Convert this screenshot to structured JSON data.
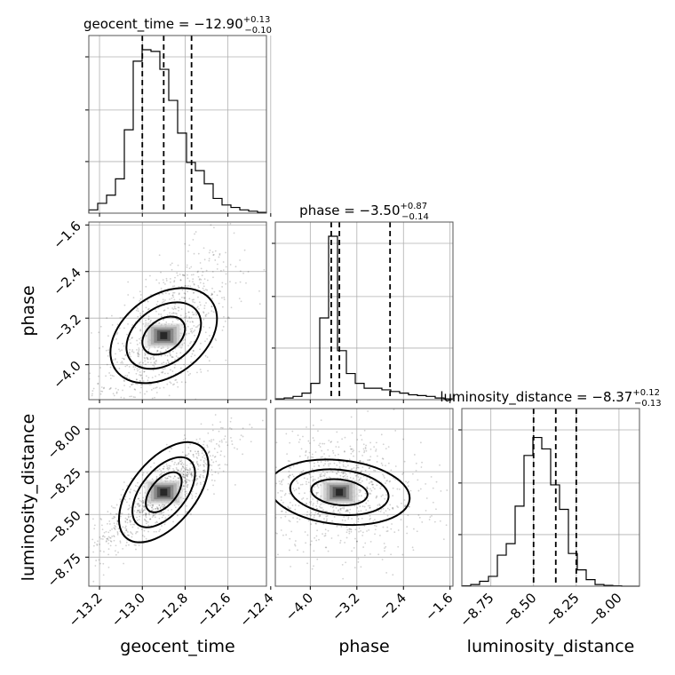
{
  "chart_data": {
    "type": "corner",
    "parameters": [
      "geocent_time",
      "phase",
      "luminosity_distance"
    ],
    "ranges": {
      "geocent_time": [
        -13.25,
        -12.42
      ],
      "phase": [
        -4.6,
        -1.55
      ],
      "luminosity_distance": [
        -8.92,
        -7.88
      ]
    },
    "ticks": {
      "geocent_time": [
        "-13.2",
        "-13.0",
        "-12.8",
        "-12.6",
        "-12.4"
      ],
      "phase": [
        "-4.0",
        "-3.2",
        "-2.4",
        "-1.6"
      ],
      "luminosity_distance": [
        "-8.75",
        "-8.50",
        "-8.25",
        "-8.00"
      ]
    },
    "tick_values": {
      "geocent_time": [
        -13.2,
        -13.0,
        -12.8,
        -12.6,
        -12.4
      ],
      "phase": [
        -4.0,
        -3.2,
        -2.4,
        -1.6
      ],
      "luminosity_distance": [
        -8.75,
        -8.5,
        -8.25,
        -8.0
      ]
    },
    "titles": [
      {
        "param": "geocent_time",
        "label": "geocent_time = −12.90",
        "plus": "+0.13",
        "minus": "−0.10"
      },
      {
        "param": "phase",
        "label": "phase = −3.50",
        "plus": "+0.87",
        "minus": "−0.14"
      },
      {
        "param": "luminosity_distance",
        "label": "luminosity_distance = −8.37",
        "plus": "+0.12",
        "minus": "−0.13"
      }
    ],
    "quantiles": {
      "geocent_time": [
        -13.0,
        -12.9,
        -12.77
      ],
      "phase": [
        -3.64,
        -3.5,
        -2.63
      ],
      "luminosity_distance": [
        -8.5,
        -8.37,
        -8.25
      ]
    },
    "histograms": {
      "geocent_time": [
        0.02,
        0.06,
        0.11,
        0.21,
        0.51,
        0.93,
        1.0,
        0.99,
        0.88,
        0.69,
        0.49,
        0.31,
        0.26,
        0.18,
        0.09,
        0.05,
        0.035,
        0.02,
        0.012,
        0.005
      ],
      "phase": [
        0.005,
        0.01,
        0.02,
        0.04,
        0.1,
        0.5,
        1.0,
        0.3,
        0.16,
        0.1,
        0.07,
        0.07,
        0.06,
        0.05,
        0.04,
        0.03,
        0.025,
        0.02,
        0.01,
        0.005
      ],
      "luminosity_distance": [
        0.002,
        0.01,
        0.03,
        0.06,
        0.19,
        0.26,
        0.49,
        0.8,
        0.91,
        0.84,
        0.62,
        0.47,
        0.2,
        0.1,
        0.04,
        0.01,
        0.005,
        0.002,
        0.0,
        0.0
      ]
    },
    "correlations": {
      "phase|geocent_time": 0.6,
      "luminosity_distance|geocent_time": 0.85,
      "luminosity_distance|phase": -0.1
    },
    "xlabels": [
      "geocent_time",
      "phase",
      "luminosity_distance"
    ],
    "ylabels": [
      "",
      "phase",
      "luminosity_distance"
    ],
    "grid": true
  }
}
